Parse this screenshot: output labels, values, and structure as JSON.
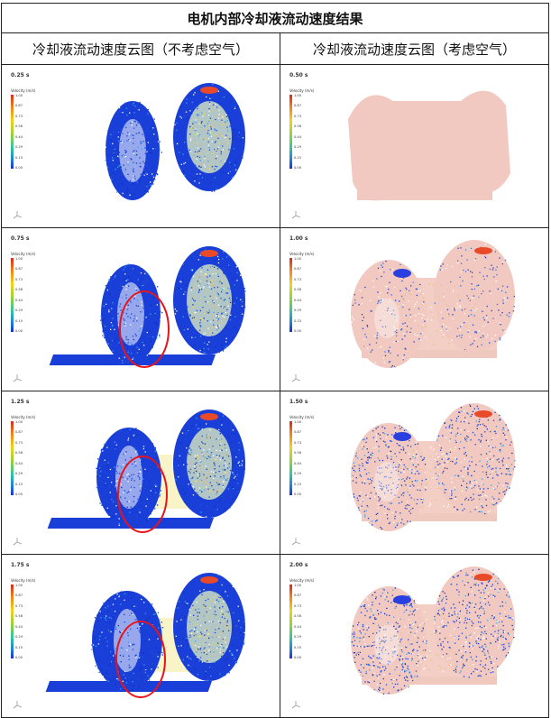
{
  "table": {
    "title": "电机内部冷却液流动速度结果",
    "headers": [
      "冷却液流动速度云图（不考虑空气）",
      "冷却液流动速度云图（考虑空气）"
    ]
  },
  "legend": {
    "title": "Velocity (m/s)",
    "ticks": [
      "1.00",
      "0.87",
      "0.73",
      "0.58",
      "0.44",
      "0.29",
      "0.15",
      "0.00"
    ]
  },
  "panels": {
    "left": [
      {
        "time": "0.25 s"
      },
      {
        "time": "0.75 s"
      },
      {
        "time": "1.25 s"
      },
      {
        "time": "1.75 s"
      }
    ],
    "right": [
      {
        "time": "0.50 s"
      },
      {
        "time": "1.00 s"
      },
      {
        "time": "1.50 s"
      },
      {
        "time": "2.00 s"
      }
    ]
  },
  "colors": {
    "coolant_blue": "#1a3fd8",
    "air_pink": "#f2c9c0",
    "highlight_circle": "#e8141a",
    "border": "#222222"
  }
}
